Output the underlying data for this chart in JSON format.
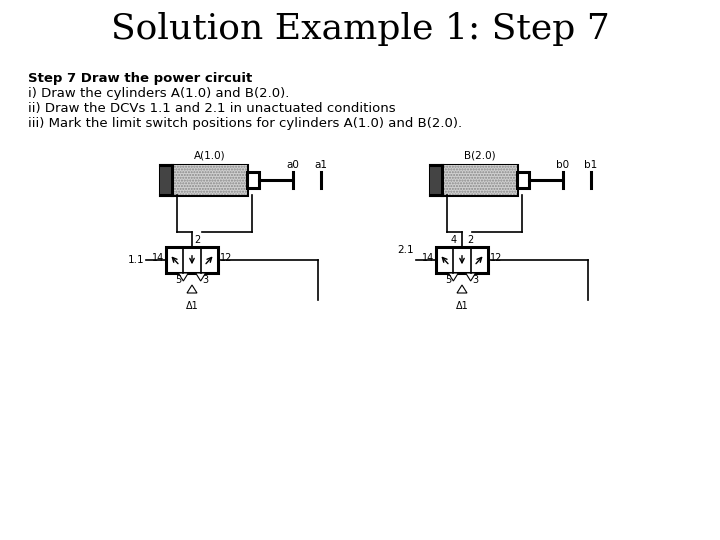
{
  "title": "Solution Example 1: Step 7",
  "title_fontsize": 26,
  "title_font": "serif",
  "bg_color": "#ffffff",
  "text_lines": [
    "Step 7 Draw the power circuit",
    "i) Draw the cylinders A(1.0) and B(2.0).",
    "ii) Draw the DCVs 1.1 and 2.1 in unactuated conditions",
    "iii) Mark the limit switch positions for cylinders A(1.0) and B(2.0)."
  ],
  "text_fontsize": 9.5,
  "cyl_A_label": "A(1.0)",
  "cyl_B_label": "B(2.0)",
  "dcv_A_label": "1.1",
  "dcv_B_label": "2.1",
  "lim_a0": "a0",
  "lim_a1": "a1",
  "lim_b0": "b0",
  "lim_b1": "b1",
  "sym_A1": "Δ1",
  "sym_B1": "Δ1",
  "port_A": [
    "14",
    "2",
    "12",
    "5",
    "3"
  ],
  "port_B": [
    "14",
    "4",
    "2",
    "12",
    "5",
    "3"
  ]
}
